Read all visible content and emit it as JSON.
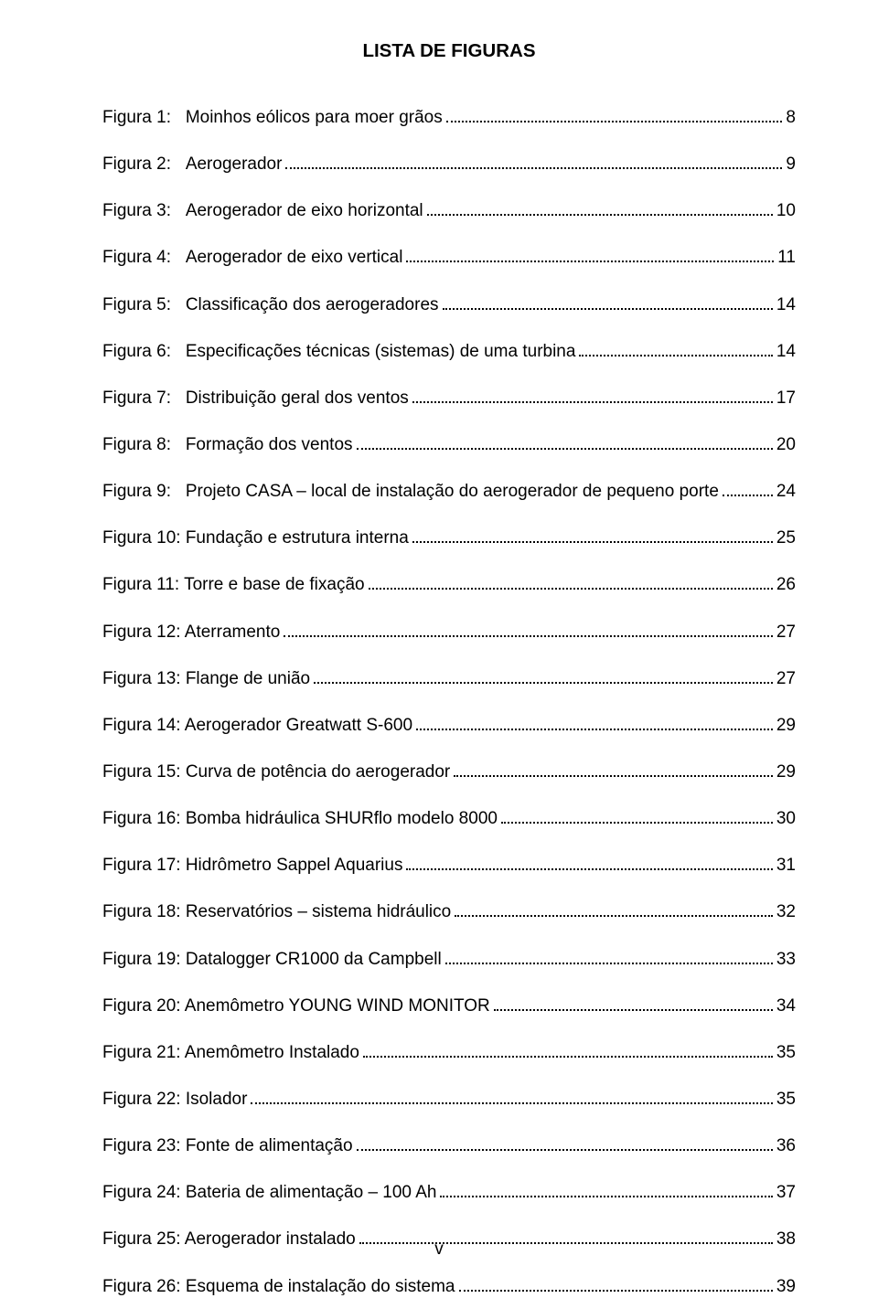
{
  "title": "LISTA DE FIGURAS",
  "text_color": "#000000",
  "background_color": "#ffffff",
  "title_fontsize": 20.5,
  "body_fontsize": 19,
  "entries": [
    {
      "label": "Figura 1:   Moinhos eólicos para moer grãos",
      "page": "8"
    },
    {
      "label": "Figura 2:   Aerogerador",
      "page": "9"
    },
    {
      "label": "Figura 3:   Aerogerador de eixo horizontal",
      "page": " 10"
    },
    {
      "label": "Figura 4:   Aerogerador de eixo vertical",
      "page": " 11"
    },
    {
      "label": "Figura 5:   Classificação dos aerogeradores",
      "page": " 14"
    },
    {
      "label": "Figura 6:   Especificações técnicas (sistemas) de uma turbina",
      "page": " 14"
    },
    {
      "label": "Figura 7:   Distribuição geral dos ventos",
      "page": " 17"
    },
    {
      "label": "Figura 8:   Formação dos ventos",
      "page": " 20"
    },
    {
      "label": "Figura 9:   Projeto CASA – local de instalação do aerogerador de pequeno porte",
      "page": " 24"
    },
    {
      "label": "Figura 10: Fundação e estrutura interna",
      "page": " 25"
    },
    {
      "label": "Figura 11: Torre e base de fixação",
      "page": " 26"
    },
    {
      "label": "Figura 12: Aterramento",
      "page": " 27"
    },
    {
      "label": "Figura 13: Flange de união",
      "page": " 27"
    },
    {
      "label": "Figura 14: Aerogerador Greatwatt S-600",
      "page": " 29"
    },
    {
      "label": "Figura 15: Curva de potência do aerogerador",
      "page": " 29"
    },
    {
      "label": "Figura 16: Bomba hidráulica SHURflo modelo 8000",
      "page": " 30"
    },
    {
      "label": "Figura 17: Hidrômetro Sappel Aquarius",
      "page": " 31"
    },
    {
      "label": "Figura 18: Reservatórios – sistema hidráulico",
      "page": " 32"
    },
    {
      "label": "Figura 19: Datalogger CR1000 da Campbell",
      "page": " 33"
    },
    {
      "label": "Figura 20: Anemômetro YOUNG WIND MONITOR",
      "page": " 34"
    },
    {
      "label": "Figura 21: Anemômetro Instalado",
      "page": " 35"
    },
    {
      "label": "Figura 22: Isolador",
      "page": " 35"
    },
    {
      "label": "Figura 23: Fonte de alimentação",
      "page": " 36"
    },
    {
      "label": "Figura 24: Bateria de alimentação – 100 Ah",
      "page": " 37"
    },
    {
      "label": "Figura 25: Aerogerador instalado",
      "page": " 38"
    },
    {
      "label": "Figura 26: Esquema de instalação do sistema",
      "page": " 39"
    }
  ],
  "footer": "v"
}
